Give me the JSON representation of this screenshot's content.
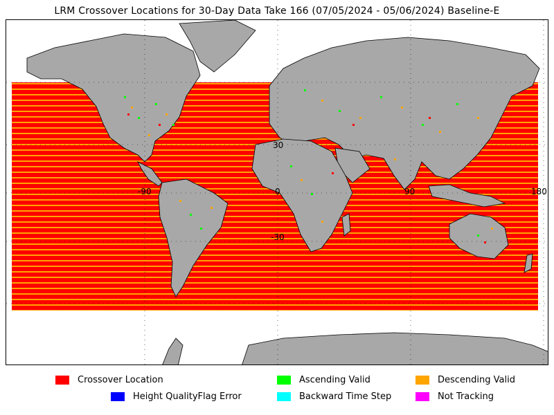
{
  "title": "LRM Crossover Locations for 30-Day Data Take 166 (07/05/2024 - 05/06/2024) Baseline-E",
  "map": {
    "graticule_labels": [
      {
        "id": "lat-30n",
        "text": "30"
      },
      {
        "id": "lon-minus-90",
        "text": "-90"
      },
      {
        "id": "lon-0",
        "text": "0"
      },
      {
        "id": "lat-30s",
        "text": "-30"
      },
      {
        "id": "lon-90",
        "text": "90"
      },
      {
        "id": "lon-180",
        "text": "180"
      }
    ],
    "colors": {
      "ocean": "#ffffff",
      "land": "#a8a8a8",
      "coast": "#000000",
      "crossover": "#ff0000",
      "ascending": "#00ff00",
      "descending": "#ffa500"
    }
  },
  "legend": [
    {
      "id": "crossover-location",
      "label": "Crossover Location",
      "color": "#ff0000"
    },
    {
      "id": "ascending-valid",
      "label": "Ascending Valid",
      "color": "#00ff00"
    },
    {
      "id": "descending-valid",
      "label": "Descending Valid",
      "color": "#ffa500"
    },
    {
      "id": "height-qualityflag-error",
      "label": "Height QualityFlag Error",
      "color": "#0000ff"
    },
    {
      "id": "backward-time-step",
      "label": "Backward Time Step",
      "color": "#00ffff"
    },
    {
      "id": "not-tracking",
      "label": "Not Tracking",
      "color": "#ff00ff"
    }
  ]
}
